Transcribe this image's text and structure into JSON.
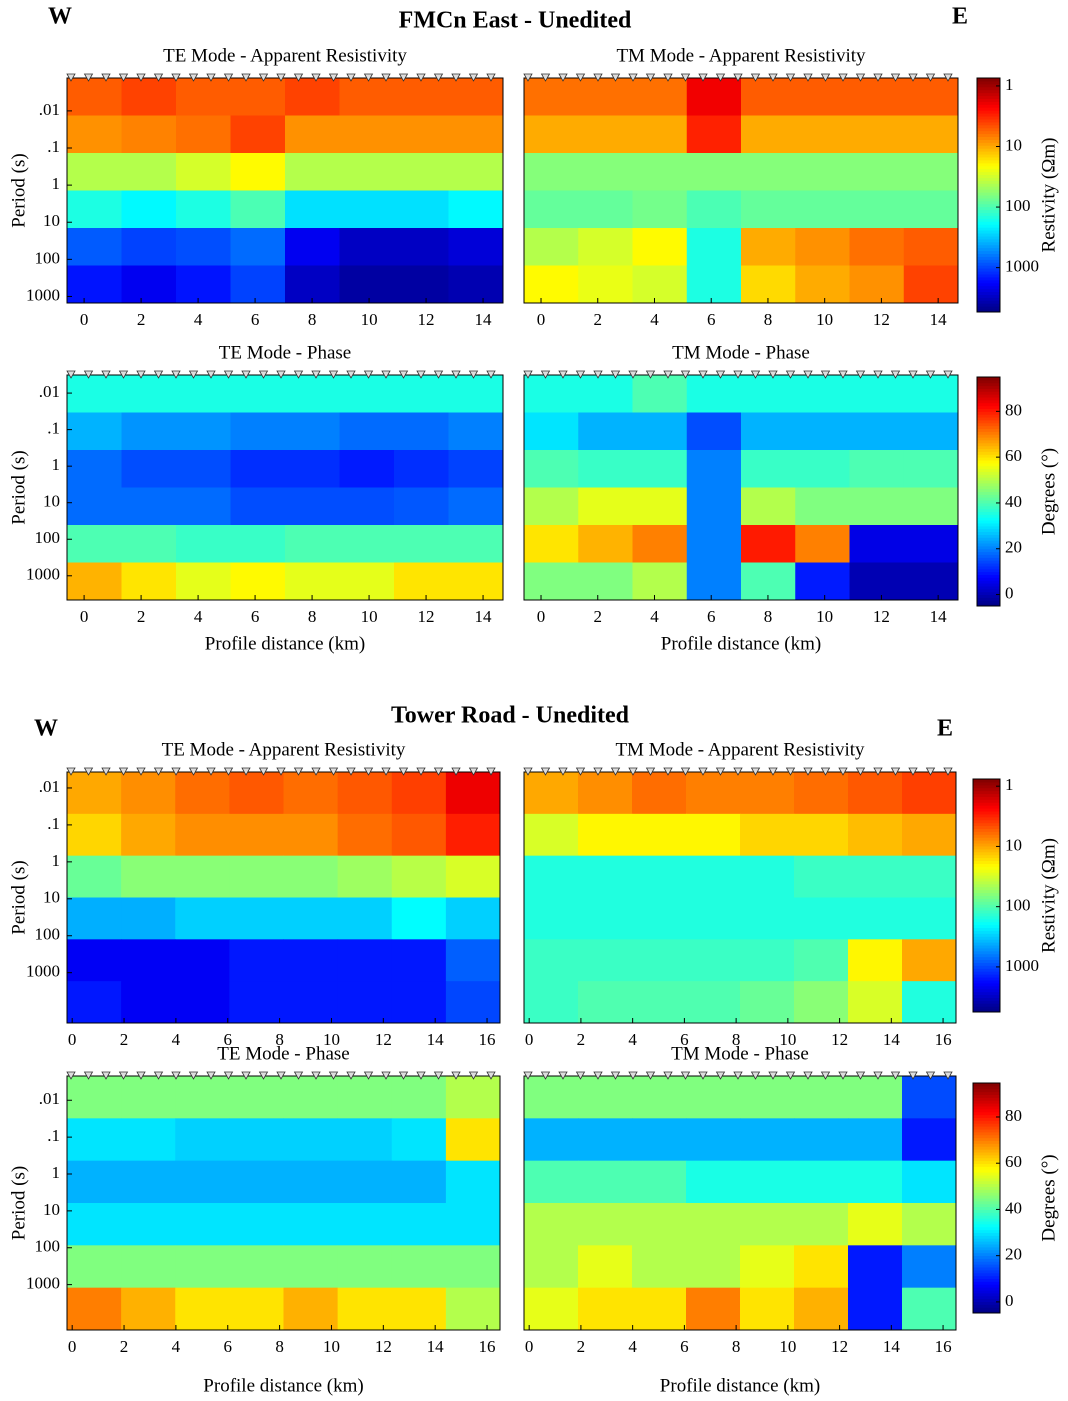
{
  "sections": [
    {
      "title": "FMCn East - Unedited",
      "west": "W",
      "east": "E"
    },
    {
      "title": "Tower Road - Unedited",
      "west": "W",
      "east": "E"
    }
  ],
  "chart_data": [
    {
      "type": "heatmap",
      "title": "TE Mode - Apparent Resistivity",
      "ylabel": "Period (s)",
      "ylog": true,
      "xlim": [
        -0.6,
        14.7
      ],
      "xticks": [
        0,
        2,
        4,
        6,
        8,
        10,
        12,
        14
      ],
      "ylim": [
        0.0013,
        1500
      ],
      "yticks": [
        {
          "value": 0.01,
          "label": ".01"
        },
        {
          "value": 0.1,
          "label": ".1"
        },
        1,
        10,
        100,
        1000
      ],
      "clim": [
        0.74,
        5400
      ],
      "clog": true,
      "creverse": true,
      "values": [
        [
          5,
          4,
          5,
          5,
          4,
          5,
          5,
          5
        ],
        [
          8,
          7,
          6,
          4,
          8,
          8,
          8,
          8
        ],
        [
          40,
          40,
          30,
          20,
          40,
          40,
          40,
          40
        ],
        [
          150,
          200,
          150,
          100,
          250,
          250,
          250,
          200
        ],
        [
          800,
          1000,
          900,
          700,
          2000,
          3000,
          3000,
          2500
        ],
        [
          1500,
          2000,
          1500,
          1000,
          3000,
          4000,
          4000,
          3500
        ]
      ]
    },
    {
      "type": "heatmap",
      "title": "TM Mode - Apparent Resistivity",
      "ylog": true,
      "xlim": [
        -0.6,
        14.7
      ],
      "xticks": [
        0,
        2,
        4,
        6,
        8,
        10,
        12,
        14
      ],
      "ylim": [
        0.0013,
        1500
      ],
      "clim": [
        0.74,
        5400
      ],
      "clog": true,
      "creverse": true,
      "colorbar": {
        "label": "Restivity (Ωm)",
        "ticks": [
          1,
          10,
          100,
          1000
        ]
      },
      "values": [
        [
          6,
          6,
          6,
          2,
          5,
          5,
          5,
          5
        ],
        [
          10,
          10,
          10,
          3,
          10,
          10,
          10,
          10
        ],
        [
          60,
          60,
          60,
          60,
          60,
          60,
          60,
          60
        ],
        [
          80,
          80,
          70,
          100,
          80,
          80,
          80,
          80
        ],
        [
          40,
          30,
          20,
          150,
          10,
          8,
          6,
          5
        ],
        [
          20,
          25,
          30,
          150,
          15,
          10,
          8,
          4
        ]
      ]
    },
    {
      "type": "heatmap",
      "title": "TE Mode - Phase",
      "ylabel": "Period (s)",
      "xlabel": "Profile distance (km)",
      "ylog": true,
      "xlim": [
        -0.6,
        14.7
      ],
      "xticks": [
        0,
        2,
        4,
        6,
        8,
        10,
        12,
        14
      ],
      "ylim": [
        0.0032,
        4600
      ],
      "yticks": [
        {
          "value": 0.01,
          "label": ".01"
        },
        {
          "value": 0.1,
          "label": ".1"
        },
        1,
        10,
        100,
        1000
      ],
      "clim": [
        -5,
        95
      ],
      "clog": false,
      "creverse": false,
      "values": [
        [
          35,
          35,
          35,
          35,
          35,
          35,
          35,
          35
        ],
        [
          25,
          22,
          22,
          20,
          20,
          18,
          18,
          20
        ],
        [
          18,
          15,
          15,
          12,
          12,
          10,
          12,
          14
        ],
        [
          18,
          18,
          18,
          15,
          15,
          15,
          16,
          18
        ],
        [
          40,
          40,
          38,
          38,
          40,
          40,
          40,
          40
        ],
        [
          65,
          60,
          55,
          58,
          55,
          55,
          60,
          60
        ]
      ]
    },
    {
      "type": "heatmap",
      "title": "TM Mode - Phase",
      "xlabel": "Profile distance (km)",
      "ylog": true,
      "xlim": [
        -0.6,
        14.7
      ],
      "xticks": [
        0,
        2,
        4,
        6,
        8,
        10,
        12,
        14
      ],
      "ylim": [
        0.0032,
        4600
      ],
      "clim": [
        -5,
        95
      ],
      "clog": false,
      "creverse": false,
      "colorbar": {
        "label": "Degrees (°)",
        "ticks": [
          0,
          20,
          40,
          60,
          80
        ]
      },
      "values": [
        [
          35,
          35,
          40,
          35,
          35,
          35,
          35,
          35
        ],
        [
          30,
          25,
          25,
          15,
          25,
          25,
          25,
          25
        ],
        [
          40,
          38,
          38,
          20,
          38,
          38,
          40,
          40
        ],
        [
          50,
          55,
          55,
          20,
          50,
          45,
          45,
          45
        ],
        [
          60,
          65,
          70,
          20,
          80,
          70,
          5,
          5
        ],
        [
          45,
          45,
          50,
          20,
          40,
          10,
          0,
          0
        ]
      ]
    },
    {
      "type": "heatmap",
      "title": "TE Mode - Apparent Resistivity",
      "ylabel": "Period (s)",
      "ylog": true,
      "xlim": [
        -0.2,
        16.5
      ],
      "xticks": [
        0,
        2,
        4,
        6,
        8,
        10,
        12,
        14,
        16
      ],
      "ylim": [
        0.0037,
        23000
      ],
      "yticks": [
        {
          "value": 0.01,
          "label": ".01"
        },
        {
          "value": 0.1,
          "label": ".1"
        },
        1,
        10,
        100,
        1000
      ],
      "clim": [
        0.76,
        5600
      ],
      "clog": true,
      "creverse": true,
      "values": [
        [
          10,
          8,
          6,
          5,
          6,
          5,
          4,
          2
        ],
        [
          15,
          10,
          8,
          8,
          8,
          6,
          5,
          3
        ],
        [
          80,
          60,
          60,
          60,
          60,
          50,
          40,
          30
        ],
        [
          400,
          400,
          300,
          300,
          300,
          300,
          200,
          300
        ],
        [
          2000,
          2000,
          2000,
          1500,
          1500,
          1500,
          1500,
          800
        ],
        [
          1500,
          2000,
          2000,
          1500,
          1500,
          1500,
          1500,
          1000
        ]
      ]
    },
    {
      "type": "heatmap",
      "title": "TM Mode - Apparent Resistivity",
      "ylog": true,
      "xlim": [
        -0.2,
        16.5
      ],
      "xticks": [
        0,
        2,
        4,
        6,
        8,
        10,
        12,
        14,
        16
      ],
      "ylim": [
        0.0037,
        23000
      ],
      "clim": [
        0.76,
        5600
      ],
      "clog": true,
      "creverse": true,
      "colorbar": {
        "label": "Restivity (Ωm)",
        "ticks": [
          1,
          10,
          100,
          1000
        ]
      },
      "values": [
        [
          10,
          8,
          6,
          7,
          7,
          6,
          5,
          4
        ],
        [
          30,
          20,
          20,
          20,
          15,
          15,
          12,
          10
        ],
        [
          150,
          150,
          150,
          150,
          150,
          120,
          120,
          120
        ],
        [
          150,
          150,
          150,
          150,
          150,
          150,
          150,
          150
        ],
        [
          120,
          120,
          120,
          120,
          120,
          100,
          20,
          10
        ],
        [
          120,
          100,
          100,
          100,
          80,
          60,
          30,
          150
        ]
      ]
    },
    {
      "type": "heatmap",
      "title": "TE Mode - Phase",
      "ylabel": "Period (s)",
      "xlabel": "Profile distance (km)",
      "ylog": true,
      "xlim": [
        -0.2,
        16.5
      ],
      "xticks": [
        0,
        2,
        4,
        6,
        8,
        10,
        12,
        14,
        16
      ],
      "ylim": [
        0.0022,
        17000
      ],
      "yticks": [
        {
          "value": 0.01,
          "label": ".01"
        },
        {
          "value": 0.1,
          "label": ".1"
        },
        1,
        10,
        100,
        1000
      ],
      "clim": [
        -4.8,
        94.7
      ],
      "clog": false,
      "creverse": false,
      "values": [
        [
          45,
          45,
          45,
          45,
          45,
          45,
          45,
          50
        ],
        [
          30,
          30,
          28,
          28,
          28,
          28,
          30,
          60
        ],
        [
          25,
          25,
          25,
          25,
          25,
          25,
          25,
          30
        ],
        [
          30,
          30,
          30,
          30,
          30,
          30,
          30,
          30
        ],
        [
          45,
          45,
          45,
          45,
          45,
          45,
          45,
          45
        ],
        [
          70,
          65,
          60,
          60,
          65,
          60,
          60,
          50
        ]
      ]
    },
    {
      "type": "heatmap",
      "title": "TM Mode - Phase",
      "xlabel": "Profile distance (km)",
      "ylog": true,
      "xlim": [
        -0.2,
        16.5
      ],
      "xticks": [
        0,
        2,
        4,
        6,
        8,
        10,
        12,
        14,
        16
      ],
      "ylim": [
        0.0022,
        17000
      ],
      "clim": [
        -4.8,
        94.7
      ],
      "clog": false,
      "creverse": false,
      "colorbar": {
        "label": "Degrees (°)",
        "ticks": [
          0,
          20,
          40,
          60,
          80
        ]
      },
      "values": [
        [
          45,
          45,
          45,
          45,
          45,
          45,
          45,
          15
        ],
        [
          25,
          25,
          25,
          25,
          25,
          25,
          25,
          10
        ],
        [
          40,
          40,
          40,
          35,
          35,
          35,
          35,
          30
        ],
        [
          50,
          50,
          50,
          50,
          50,
          50,
          55,
          50
        ],
        [
          50,
          55,
          50,
          50,
          55,
          60,
          10,
          20
        ],
        [
          55,
          60,
          60,
          70,
          60,
          65,
          10,
          40
        ]
      ]
    }
  ]
}
